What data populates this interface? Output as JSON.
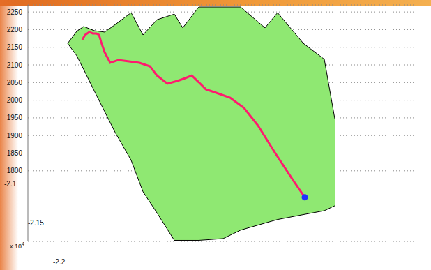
{
  "chart_data": {
    "type": "surface3d",
    "tick_labels": "y",
    "grid": true,
    "xlim": [
      40,
      600
    ],
    "ylim": [
      1600,
      2270
    ],
    "yticks": [
      1800,
      1850,
      1900,
      1950,
      2000,
      2050,
      2100,
      2150,
      2200,
      2250
    ],
    "depth_axis": {
      "ticks": [
        -2.1,
        -2.15,
        -2.2
      ],
      "multiplier": {
        "base": "x 10",
        "exponent": "4"
      }
    },
    "surface": {
      "color": "#8fe872",
      "x": [
        97,
        110,
        120,
        135,
        150,
        165,
        188,
        205,
        225,
        250,
        262,
        285,
        320,
        345,
        380,
        398,
        435,
        465,
        480
      ],
      "high": [
        2161,
        2195,
        2209,
        2197,
        2193,
        2214,
        2248,
        2185,
        2228,
        2244,
        2205,
        2264,
        2264,
        2264,
        2205,
        2248,
        2161,
        2116,
        1948
      ],
      "low": [
        2161,
        2126,
        2087,
        2027,
        1968,
        1909,
        1830,
        1741,
        1681,
        1603,
        1603,
        1603,
        1608,
        1632,
        1652,
        1662,
        1676,
        1687,
        1701
      ]
    },
    "path": {
      "color": "#ff1a6e",
      "line_style": "solid",
      "x": [
        118,
        122,
        128,
        133,
        138,
        142,
        145,
        150,
        158,
        170,
        185,
        200,
        215,
        225,
        240,
        255,
        265,
        275,
        285,
        295,
        310,
        330,
        350,
        370,
        395,
        420,
        437
      ],
      "values": [
        2171,
        2185,
        2193,
        2189,
        2189,
        2185,
        2165,
        2136,
        2106,
        2114,
        2110,
        2106,
        2096,
        2070,
        2047,
        2055,
        2062,
        2070,
        2051,
        2031,
        2021,
        2007,
        1978,
        1928,
        1849,
        1774,
        1725
      ]
    },
    "end_point": {
      "color": "#2030ff",
      "marker": "circle",
      "x": [
        437
      ],
      "values": [
        1725
      ]
    }
  }
}
